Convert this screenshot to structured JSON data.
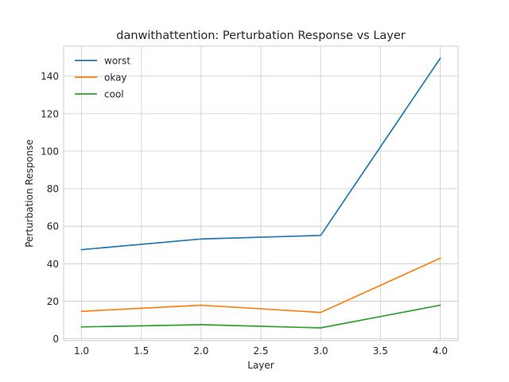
{
  "chart_data": {
    "type": "line",
    "title": "danwithattention: Perturbation Response vs Layer",
    "xlabel": "Layer",
    "ylabel": "Perturbation Response",
    "x": [
      1.0,
      2.0,
      3.0,
      4.0
    ],
    "xlim": [
      0.85,
      4.15
    ],
    "ylim": [
      -1,
      156
    ],
    "xticks": [
      1.0,
      1.5,
      2.0,
      2.5,
      3.0,
      3.5,
      4.0
    ],
    "xtick_labels": [
      "1.0",
      "1.5",
      "2.0",
      "2.5",
      "3.0",
      "3.5",
      "4.0"
    ],
    "yticks": [
      0,
      20,
      40,
      60,
      80,
      100,
      120,
      140
    ],
    "ytick_labels": [
      "0",
      "20",
      "40",
      "60",
      "80",
      "100",
      "120",
      "140"
    ],
    "grid": true,
    "legend_position": "top-left",
    "series": [
      {
        "name": "worst",
        "color": "#1f77b4",
        "values": [
          47.5,
          53.2,
          55.1,
          149.5
        ]
      },
      {
        "name": "okay",
        "color": "#ff7f0e",
        "values": [
          14.6,
          17.9,
          14.0,
          42.9
        ]
      },
      {
        "name": "cool",
        "color": "#2ca02c",
        "values": [
          6.3,
          7.5,
          5.8,
          17.9
        ]
      }
    ]
  }
}
